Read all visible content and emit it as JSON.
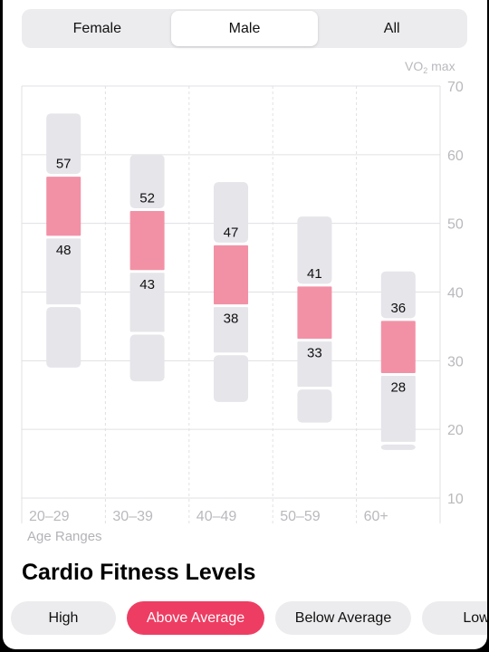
{
  "segments": [
    "Female",
    "Male",
    "All"
  ],
  "active_segment": 1,
  "chart_data": {
    "type": "range-bar",
    "ylabel": "VO2 max",
    "ylabel_main": "VO",
    "ylabel_sub": "2",
    "ylabel_suffix": " max",
    "xlabel": "Age Ranges",
    "ylim": [
      10,
      70
    ],
    "yticks": [
      10,
      20,
      30,
      40,
      50,
      60,
      70
    ],
    "categories": [
      "20–29",
      "30–39",
      "40–49",
      "50–59",
      "60+"
    ],
    "highlight_level": "Above Average",
    "levels": [
      "High",
      "Above Average",
      "Below Average",
      "Low"
    ],
    "ranges": [
      {
        "category": "20–29",
        "high": [
          57,
          66
        ],
        "above_average": [
          48,
          57
        ],
        "below_average": [
          38,
          48
        ],
        "low": [
          29,
          38
        ]
      },
      {
        "category": "30–39",
        "high": [
          52,
          60
        ],
        "above_average": [
          43,
          52
        ],
        "below_average": [
          34,
          43
        ],
        "low": [
          27,
          34
        ]
      },
      {
        "category": "40–49",
        "high": [
          47,
          56
        ],
        "above_average": [
          38,
          47
        ],
        "below_average": [
          31,
          38
        ],
        "low": [
          24,
          31
        ]
      },
      {
        "category": "50–59",
        "high": [
          41,
          51
        ],
        "above_average": [
          33,
          41
        ],
        "below_average": [
          26,
          33
        ],
        "low": [
          21,
          26
        ]
      },
      {
        "category": "60+",
        "high": [
          36,
          43
        ],
        "above_average": [
          28,
          36
        ],
        "below_average": [
          18,
          28
        ],
        "low": [
          17,
          18
        ]
      }
    ],
    "colors": {
      "highlight": "#f291a6",
      "segment": "#e5e5ea",
      "grid": "#e0e0e4",
      "tick": "#b9b9be"
    }
  },
  "title": "Cardio Fitness Levels",
  "filters": [
    "High",
    "Above Average",
    "Below Average",
    "Low"
  ],
  "active_filter": 1
}
